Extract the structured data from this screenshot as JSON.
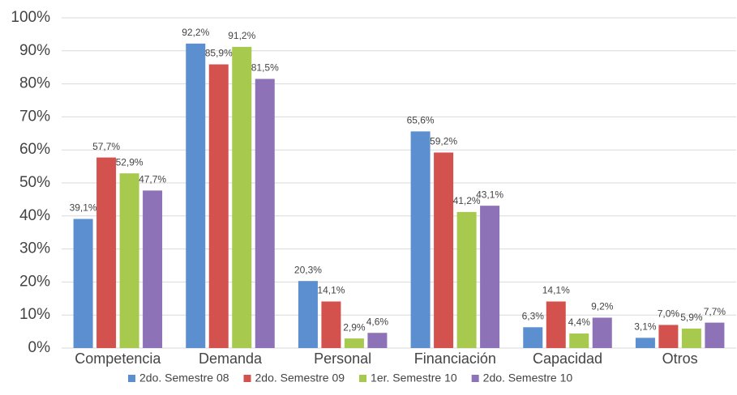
{
  "chart_data": {
    "type": "bar",
    "categories": [
      "Competencia",
      "Demanda",
      "Personal",
      "Financiación",
      "Capacidad",
      "Otros"
    ],
    "series": [
      {
        "name": "2do. Semestre 08",
        "color": "#5b8fd0",
        "values": [
          39.1,
          92.2,
          20.3,
          65.6,
          6.3,
          3.1
        ],
        "value_labels": [
          "39,1%",
          "92,2%",
          "20,3%",
          "65,6%",
          "6,3%",
          "3,1%"
        ]
      },
      {
        "name": "2do. Semestre 09",
        "color": "#d4524e",
        "values": [
          57.7,
          85.9,
          14.1,
          59.2,
          14.1,
          7.0
        ],
        "value_labels": [
          "57,7%",
          "85,9%",
          "14,1%",
          "59,2%",
          "14,1%",
          "7,0%"
        ]
      },
      {
        "name": "1er. Semestre 10",
        "color": "#a6c94e",
        "values": [
          52.9,
          91.2,
          2.9,
          41.2,
          4.4,
          5.9
        ],
        "value_labels": [
          "52,9%",
          "91,2%",
          "2,9%",
          "41,2%",
          "4,4%",
          "5,9%"
        ]
      },
      {
        "name": "2do. Semestre 10",
        "color": "#8e72b8",
        "values": [
          47.7,
          81.5,
          4.6,
          43.1,
          9.2,
          7.7
        ],
        "value_labels": [
          "47,7%",
          "81,5%",
          "4,6%",
          "43,1%",
          "9,2%",
          "7,7%"
        ]
      }
    ],
    "ylim": [
      0,
      100
    ],
    "yticks": [
      {
        "value": 0,
        "label": "0%"
      },
      {
        "value": 10,
        "label": "10%"
      },
      {
        "value": 20,
        "label": "20%"
      },
      {
        "value": 30,
        "label": "30%"
      },
      {
        "value": 40,
        "label": "40%"
      },
      {
        "value": 50,
        "label": "50%"
      },
      {
        "value": 60,
        "label": "60%"
      },
      {
        "value": 70,
        "label": "70%"
      },
      {
        "value": 80,
        "label": "80%"
      },
      {
        "value": 90,
        "label": "90%"
      },
      {
        "value": 100,
        "label": "100%"
      }
    ],
    "grid": true,
    "legend": "bottom"
  }
}
